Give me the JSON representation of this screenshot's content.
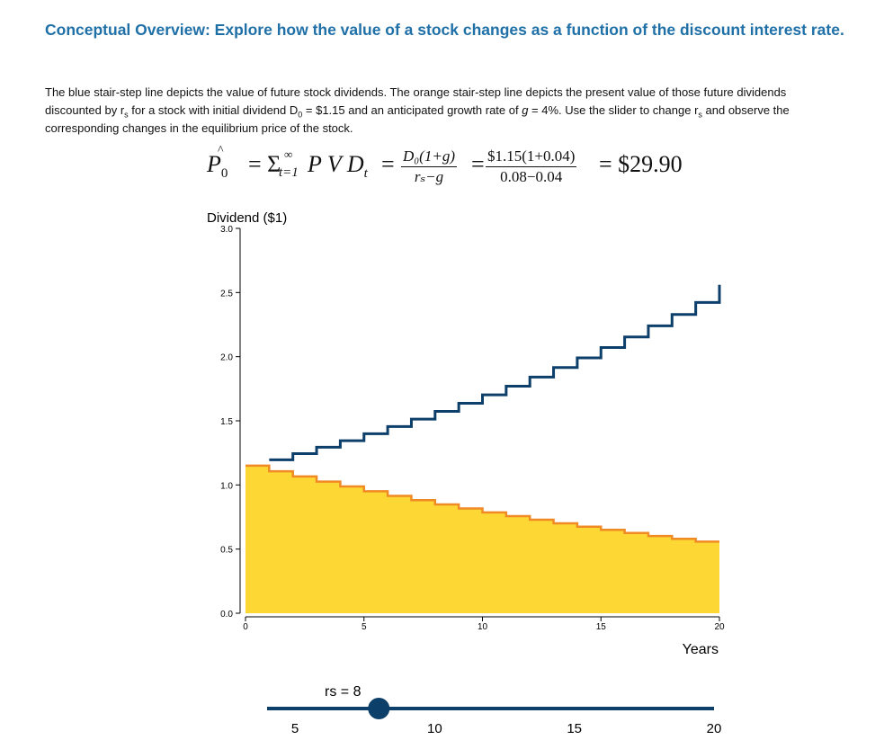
{
  "title": "Conceptual Overview: Explore how the value of a stock changes as a function of the discount interest rate.",
  "description": {
    "part1": "The blue stair-step line depicts the value of future stock dividends. The orange stair-step line depicts the present value of those future dividends discounted by r",
    "sub1": "s",
    "part2": " for a stock with initial dividend D",
    "sub2": "0",
    "part3": " = $1.15 and an anticipated growth rate of ",
    "g_symbol": "g",
    "part4": " = 4%. Use the slider to change r",
    "sub3": "s",
    "part5": " and observe the corresponding changes in the equilibrium price of the stock."
  },
  "formula": {
    "lhs_symbol": "P",
    "lhs_sub": "0",
    "sum_symbol": "= Σ",
    "sum_upper": "∞",
    "sum_lower": "t=1",
    "term": "P V D",
    "term_sub": "t",
    "eq1": "=",
    "frac1_num": "D₀(1+g)",
    "frac1_den": "rₛ−g",
    "eq2": "=",
    "frac2_num": "$1.15(1+0.04)",
    "frac2_den": "0.08−0.04",
    "result": "= $29.90"
  },
  "slider": {
    "label": "rs = 8",
    "min": 4,
    "max": 20,
    "value": 8,
    "tick_labels": [
      "5",
      "10",
      "15",
      "20"
    ],
    "tick_values": [
      5,
      10,
      15,
      20
    ],
    "colors": {
      "track": "#0d3f6b",
      "handle": "#0d3f6b"
    }
  },
  "chart_data": {
    "type": "line",
    "ylabel": "Dividend ($1)",
    "xlabel": "Years",
    "xlim": [
      0,
      20
    ],
    "ylim": [
      0,
      3
    ],
    "x_ticks": [
      "0",
      "5",
      "10",
      "15",
      "20"
    ],
    "y_ticks": [
      "0.0",
      "0.5",
      "1.0",
      "1.5",
      "2.0",
      "2.5",
      "3.0"
    ],
    "grid": false,
    "style": "step",
    "x": [
      1,
      2,
      3,
      4,
      5,
      6,
      7,
      8,
      9,
      10,
      11,
      12,
      13,
      14,
      15,
      16,
      17,
      18,
      19,
      20
    ],
    "series": [
      {
        "values": [
          1.196,
          1.244,
          1.294,
          1.345,
          1.399,
          1.455,
          1.513,
          1.574,
          1.637,
          1.702,
          1.77,
          1.841,
          1.915,
          1.991,
          2.071,
          2.154,
          2.24,
          2.329,
          2.423,
          2.52
        ],
        "color": "#0d3f6b"
      },
      {
        "values": [
          1.15,
          1.107,
          1.066,
          1.026,
          0.988,
          0.951,
          0.915,
          0.881,
          0.848,
          0.817,
          0.786,
          0.757,
          0.729,
          0.701,
          0.675,
          0.65,
          0.626,
          0.602,
          0.58,
          0.558
        ],
        "color": "#f08a24",
        "fill": "#fdd835"
      }
    ]
  }
}
